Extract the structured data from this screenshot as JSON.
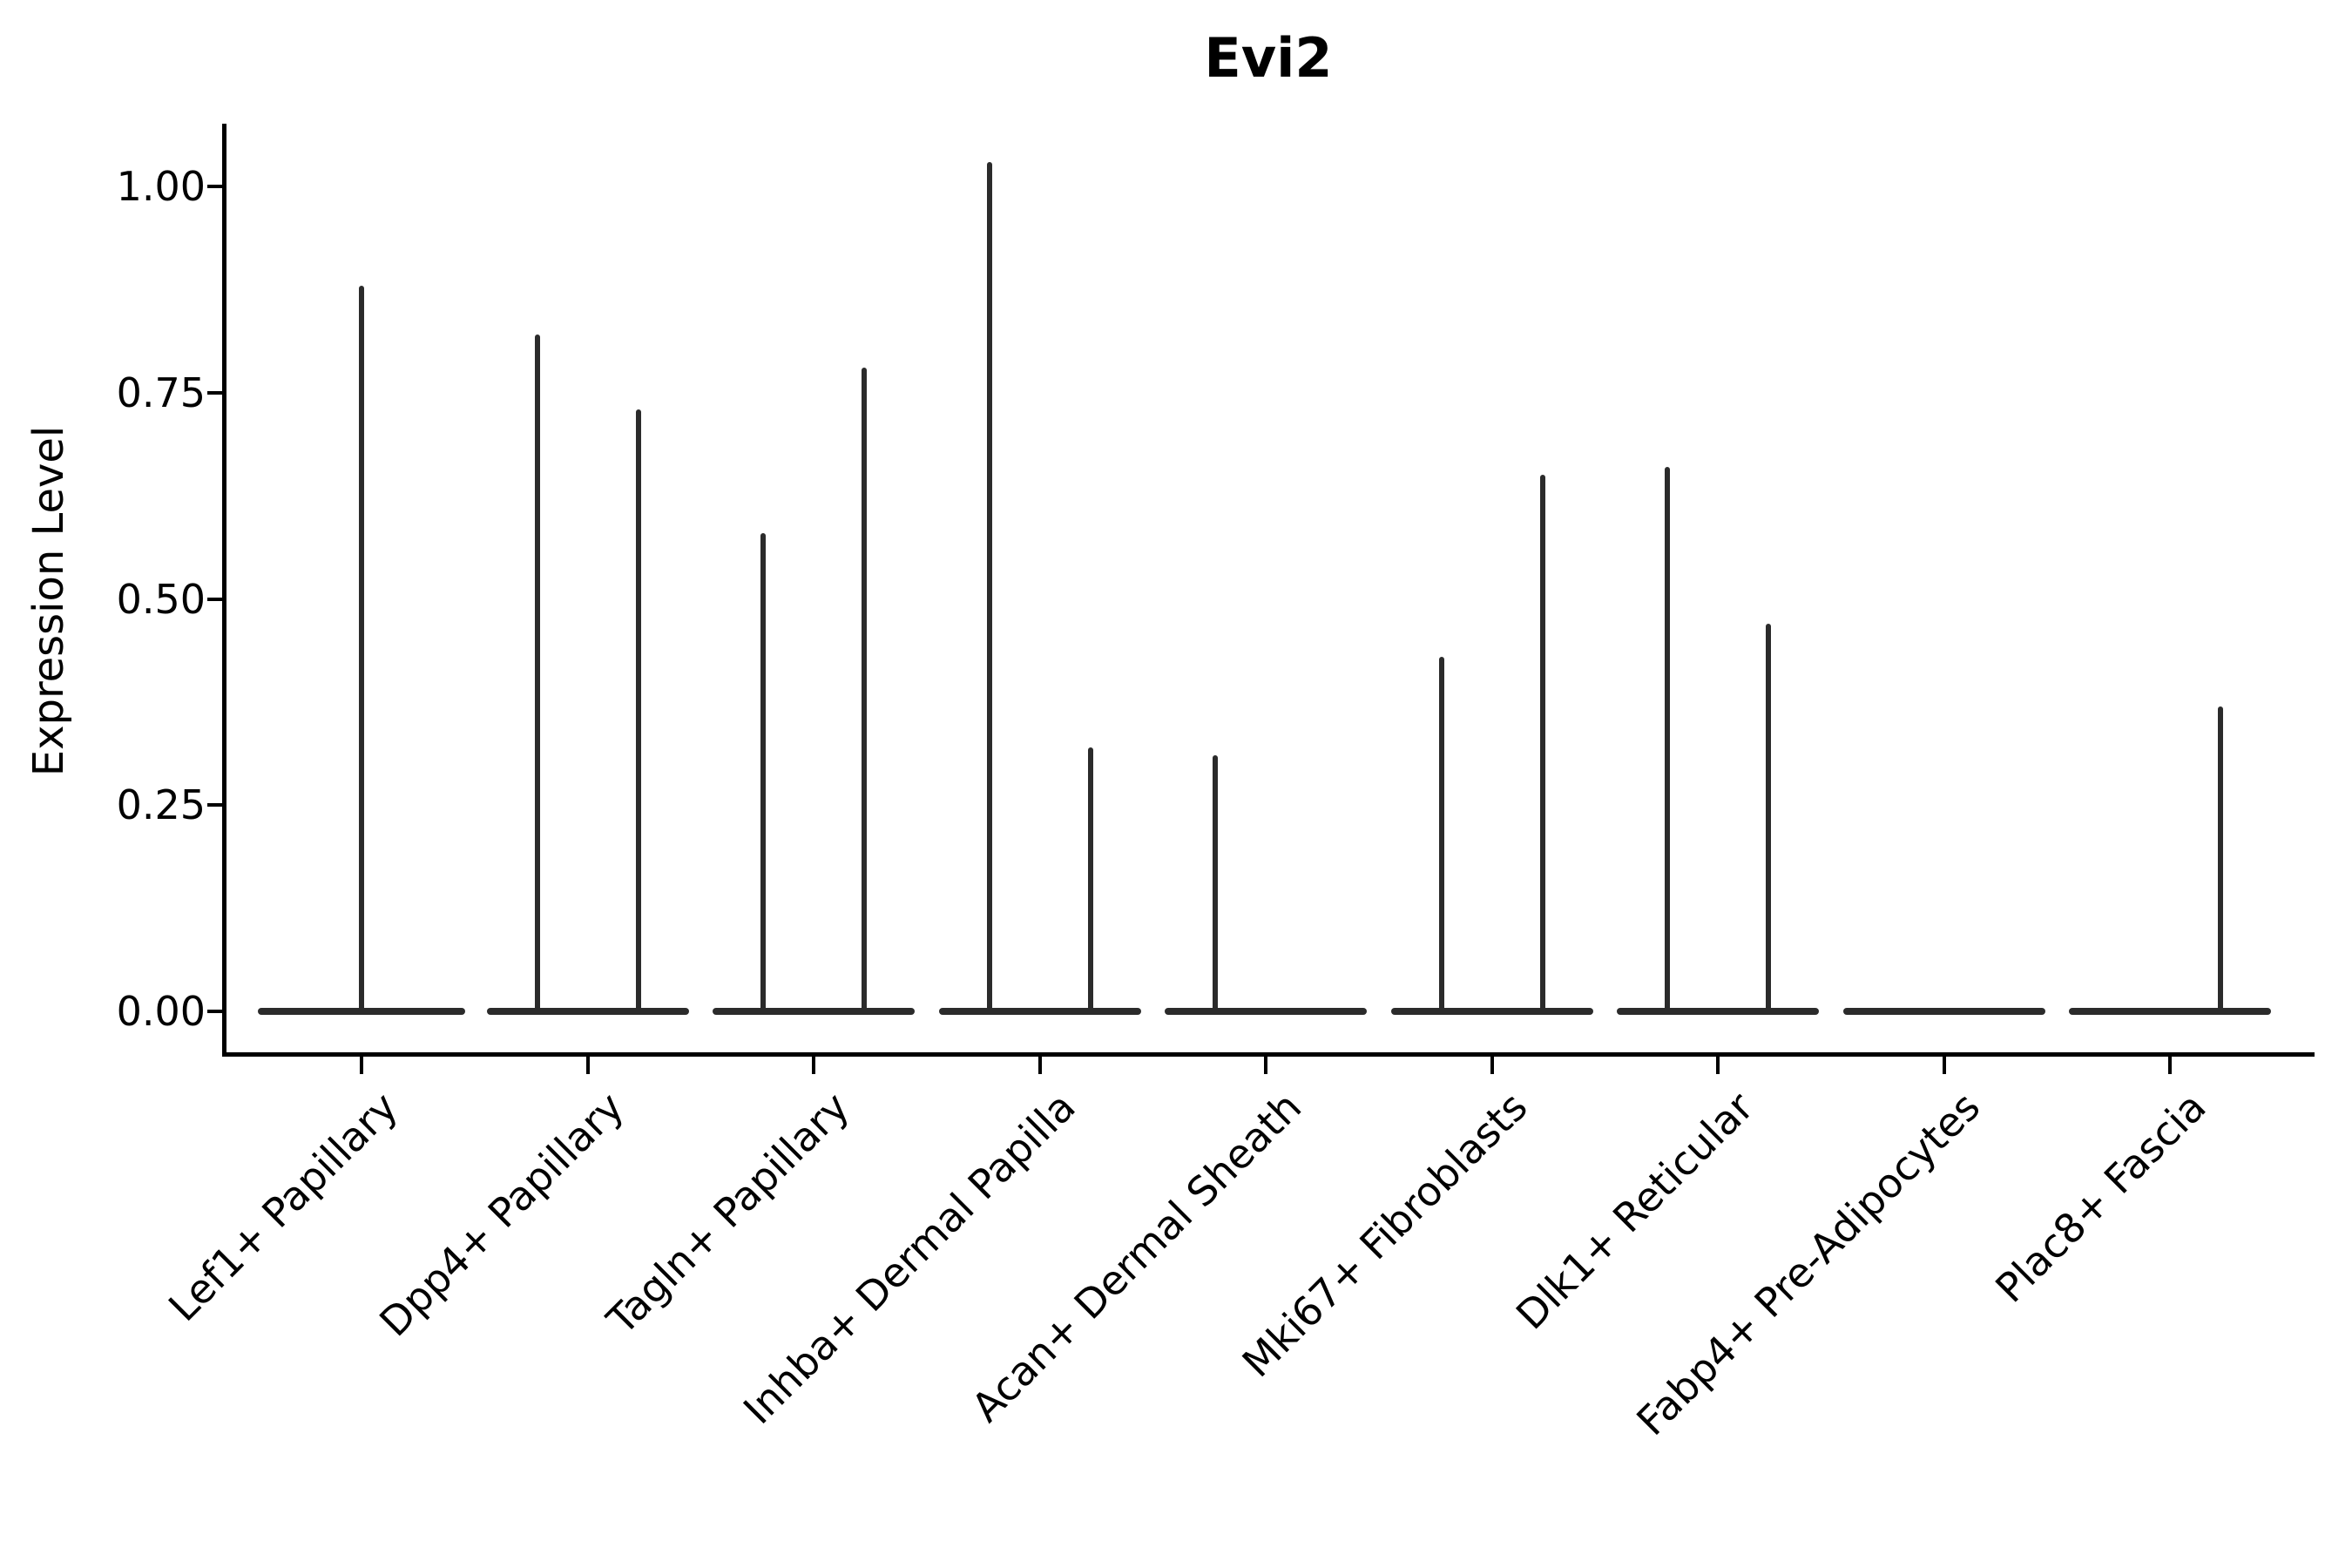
{
  "figure": {
    "title": "Evi2"
  },
  "chart_data": {
    "type": "violin",
    "title": "Evi2",
    "xlabel": "",
    "ylabel": "Expression Level",
    "ylim": [
      -0.05,
      1.08
    ],
    "yticks": [
      0.0,
      0.25,
      0.5,
      0.75,
      1.0
    ],
    "ytick_labels": [
      "0.00",
      "0.25",
      "0.50",
      "0.75",
      "1.00"
    ],
    "grid": false,
    "legend_position": "none",
    "line_color": "#2b2b2b",
    "categories": [
      "Lef1+ Papillary",
      "Dpp4+ Papillary",
      "Tagln+ Papillary",
      "Inhba+ Dermal Papilla",
      "Acan+ Dermal Sheath",
      "Mki67+ Fibroblasts",
      "Dlk1+ Reticular",
      "Fabp4+ Pre-Adipocytes",
      "Plac8+ Fascia"
    ],
    "violins": [
      {
        "category": "Lef1+ Papillary",
        "distributions": [
          {
            "position": "center",
            "max_expression": 0.88
          }
        ]
      },
      {
        "category": "Dpp4+ Papillary",
        "distributions": [
          {
            "position": "left",
            "max_expression": 0.82
          },
          {
            "position": "right",
            "max_expression": 0.73
          }
        ]
      },
      {
        "category": "Tagln+ Papillary",
        "distributions": [
          {
            "position": "left",
            "max_expression": 0.58
          },
          {
            "position": "right",
            "max_expression": 0.78
          }
        ]
      },
      {
        "category": "Inhba+ Dermal Papilla",
        "distributions": [
          {
            "position": "left",
            "max_expression": 1.03
          },
          {
            "position": "right",
            "max_expression": 0.32
          }
        ]
      },
      {
        "category": "Acan+ Dermal Sheath",
        "distributions": [
          {
            "position": "left",
            "max_expression": 0.31
          },
          {
            "position": "right",
            "max_expression": 0.0
          }
        ]
      },
      {
        "category": "Mki67+ Fibroblasts",
        "distributions": [
          {
            "position": "left",
            "max_expression": 0.43
          },
          {
            "position": "right",
            "max_expression": 0.65
          }
        ]
      },
      {
        "category": "Dlk1+ Reticular",
        "distributions": [
          {
            "position": "left",
            "max_expression": 0.66
          },
          {
            "position": "right",
            "max_expression": 0.47
          }
        ]
      },
      {
        "category": "Fabp4+ Pre-Adipocytes",
        "distributions": [
          {
            "position": "left",
            "max_expression": 0.0
          },
          {
            "position": "right",
            "max_expression": 0.0
          }
        ]
      },
      {
        "category": "Plac8+ Fascia",
        "distributions": [
          {
            "position": "left",
            "max_expression": 0.0
          },
          {
            "position": "right",
            "max_expression": 0.37
          }
        ]
      }
    ]
  }
}
